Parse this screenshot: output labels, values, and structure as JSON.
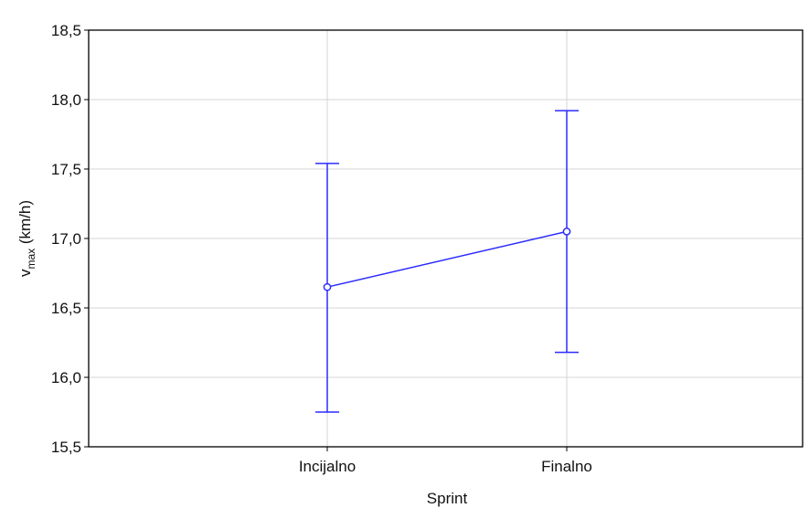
{
  "chart_data": {
    "type": "line",
    "title": "",
    "xlabel": "Sprint",
    "ylabel": {
      "main": "v",
      "subscript": "max",
      "unit": " (km/h)"
    },
    "categories": [
      "Incijalno",
      "Finalno"
    ],
    "series": [
      {
        "values": [
          16.65,
          17.05
        ],
        "error_low": [
          15.75,
          16.18
        ],
        "error_high": [
          17.54,
          17.92
        ],
        "color": "#2b2bff"
      }
    ],
    "ylim": [
      15.5,
      18.5
    ],
    "yticks": [
      {
        "value": 15.5,
        "label": "15,5"
      },
      {
        "value": 16.0,
        "label": "16,0"
      },
      {
        "value": 16.5,
        "label": "16,5"
      },
      {
        "value": 17.0,
        "label": "17,0"
      },
      {
        "value": 17.5,
        "label": "17,5"
      },
      {
        "value": 18.0,
        "label": "18,0"
      },
      {
        "value": 18.5,
        "label": "18,5"
      }
    ],
    "grid": true,
    "markers": "open-circle",
    "colors": {
      "series": "#2b2bff",
      "grid": "#d4d4d4",
      "axis": "#000000",
      "background": "#ffffff"
    }
  }
}
